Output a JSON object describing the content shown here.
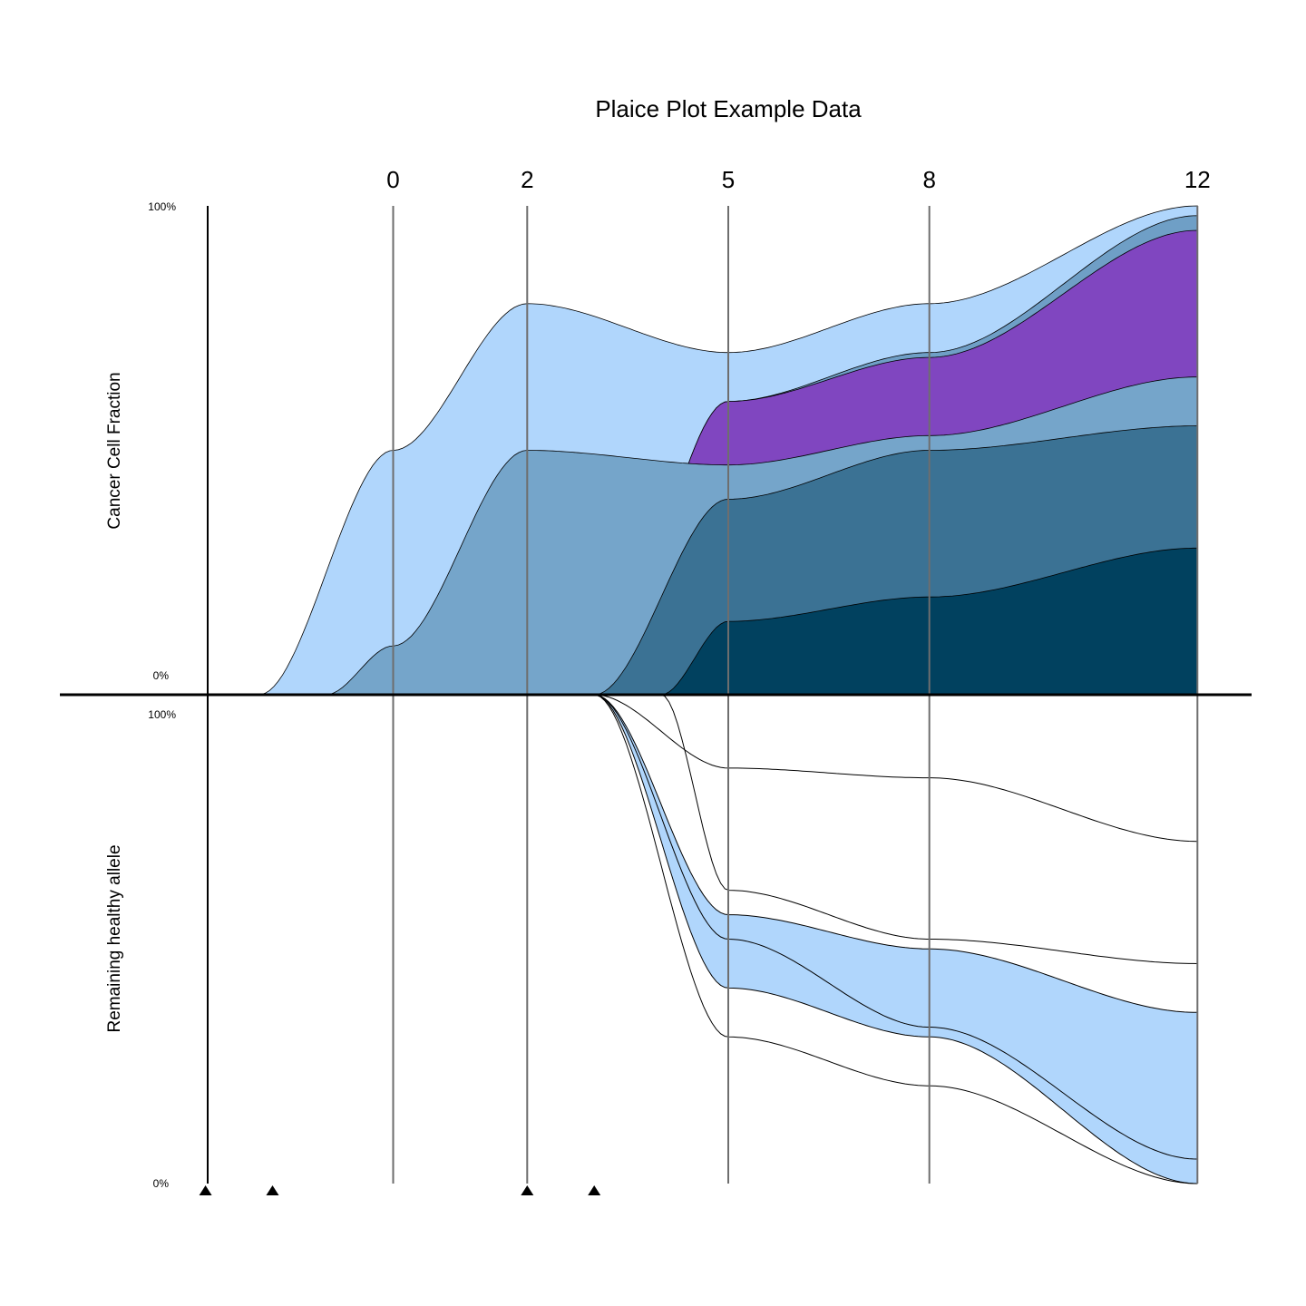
{
  "chart_data": {
    "type": "area",
    "title": "Plaice Plot Example Data",
    "x_label": "",
    "timepoints": [
      0,
      2,
      5,
      8,
      12
    ],
    "treatment_timepoints": [
      -2.8,
      -1.8,
      2,
      3
    ],
    "upper_panel": {
      "ylabel": "Cancer Cell Fraction",
      "y_top_label": "100%",
      "y_bottom_label": "0%",
      "ylim": [
        0,
        100
      ],
      "stack_bottom_to_top": [
        {
          "color": "#01415f",
          "values": [
            0,
            0,
            15,
            20,
            30
          ],
          "onset": 4.0
        },
        {
          "color": "#3b7294",
          "values": [
            0,
            0,
            40,
            50,
            55
          ],
          "onset": 3.0
        },
        {
          "color": "#75a5ca",
          "values": [
            10,
            50,
            47,
            53,
            65
          ],
          "onset": -1.0
        },
        {
          "color": "#8046c0",
          "values": [
            0,
            0,
            60,
            69,
            95
          ],
          "onset": 3.0
        },
        {
          "color": "#6f9fc6",
          "values": [
            0,
            0,
            60,
            70,
            98
          ],
          "onset": 3.0
        },
        {
          "color": "#b0d6fc",
          "values": [
            50,
            80,
            70,
            80,
            100
          ],
          "onset": -2.0
        }
      ]
    },
    "lower_panel": {
      "ylabel": "Remaining healthy allele",
      "y_top_label": "100%",
      "y_bottom_label": "0%",
      "ylim": [
        0,
        100
      ],
      "fill_color": "#b0d6fc",
      "fill_between_lines": [
        2,
        4
      ],
      "lines": [
        {
          "values": [
            90,
            50,
            85,
            83,
            70
          ],
          "onset": 3.0
        },
        {
          "values": [
            50,
            20,
            60,
            50,
            45
          ],
          "onset": 4.0
        },
        {
          "values": [
            90,
            50,
            55,
            48,
            35
          ],
          "onset": 3.0
        },
        {
          "values": [
            0,
            0,
            50,
            32,
            5
          ],
          "onset": 3.0
        },
        {
          "values": [
            0,
            0,
            40,
            30,
            0
          ],
          "onset": 3.0
        },
        {
          "values": [
            90,
            50,
            30,
            20,
            0
          ],
          "onset": 3.0
        }
      ]
    }
  }
}
